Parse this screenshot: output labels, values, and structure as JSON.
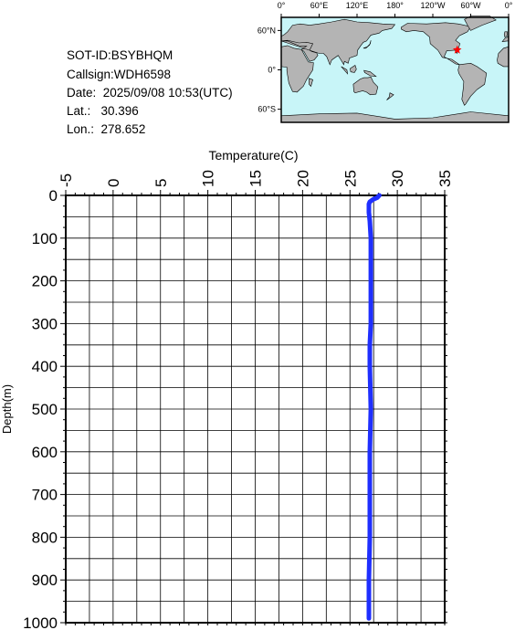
{
  "info": {
    "sot_id": "SOT-ID:BSYBHQM",
    "callsign": "Callsign:WDH6598",
    "date": "Date:  2025/09/08 10:53(UTC)",
    "lat": "Lat.:   30.396",
    "lon": "Lon.:  278.652"
  },
  "map": {
    "top_labels": [
      "0°",
      "60°E",
      "120°E",
      "180°",
      "120°W",
      "60°W",
      "0°"
    ],
    "left_labels": [
      "60°N",
      "0°",
      "60°S"
    ],
    "ocean_color": "#c8f5f8",
    "land_color": "#b4b4b4",
    "marker_color": "#ff0000",
    "marker": {
      "lon": 278.652,
      "lat": 30.396
    }
  },
  "chart_data": {
    "type": "line",
    "xlabel": "Temperature(C)",
    "ylabel": "Depth(m)",
    "xlim": [
      -5,
      35
    ],
    "ylim": [
      1000,
      0
    ],
    "xticks": [
      "-5",
      "0",
      "5",
      "10",
      "15",
      "20",
      "25",
      "30",
      "35"
    ],
    "yticks": [
      "0",
      "100",
      "200",
      "300",
      "400",
      "500",
      "600",
      "700",
      "800",
      "900",
      "1000"
    ],
    "grid": true,
    "series": [
      {
        "color": "#1f2fff",
        "x": [
          28.1,
          27.9,
          27.4,
          27.1,
          27.0,
          27.0,
          27.1,
          27.2,
          27.2,
          27.2,
          27.1,
          27.1,
          27.2,
          27.1,
          27.1,
          27.1,
          27.0,
          27.0
        ],
        "y": [
          0,
          5,
          10,
          15,
          20,
          40,
          60,
          100,
          200,
          300,
          350,
          400,
          500,
          600,
          700,
          800,
          900,
          990
        ]
      }
    ]
  }
}
